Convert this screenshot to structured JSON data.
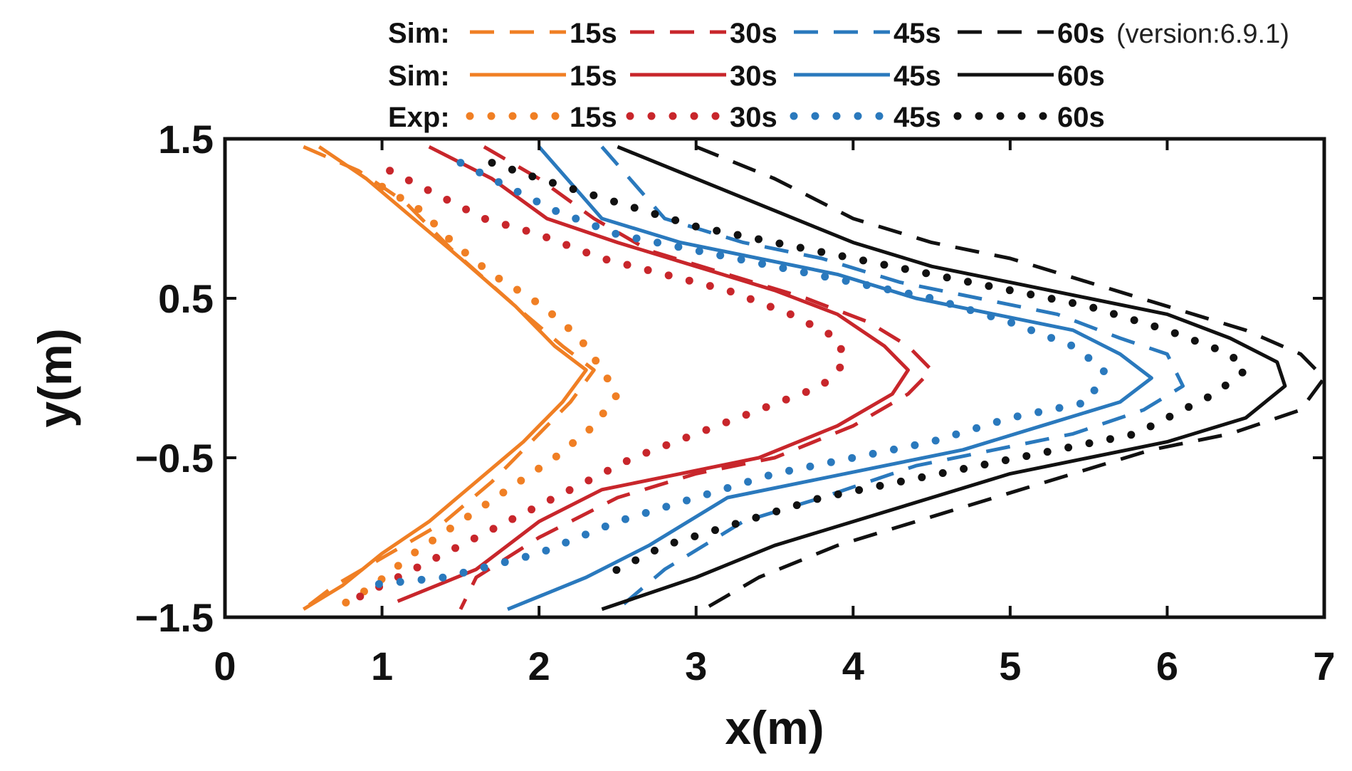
{
  "chart_data": {
    "type": "line",
    "title": "",
    "xlabel": "x(m)",
    "ylabel": "y(m)",
    "xlim": [
      0,
      7
    ],
    "ylim": [
      -1.5,
      1.5
    ],
    "xticks": [
      0,
      1,
      2,
      3,
      4,
      5,
      6,
      7
    ],
    "xtick_labels": [
      "0",
      "1",
      "2",
      "3",
      "4",
      "5",
      "6",
      "7"
    ],
    "yticks": [
      -1.5,
      -0.5,
      0.5,
      1.5
    ],
    "ytick_labels": [
      "−1.5",
      "−0.5",
      "0.5",
      "1.5"
    ],
    "grid": false,
    "legend_position": "top",
    "legend_rows": [
      {
        "label": "Sim:",
        "style": "dashed",
        "note": "(version:6.9.1)"
      },
      {
        "label": "Sim:",
        "style": "solid",
        "note": ""
      },
      {
        "label": "Exp:",
        "style": "dotted",
        "note": ""
      }
    ],
    "times": [
      "15s",
      "30s",
      "45s",
      "60s"
    ],
    "colors": {
      "15s": "#f07f24",
      "30s": "#c8262b",
      "45s": "#2a79bd",
      "60s": "#111111"
    },
    "series": [
      {
        "name": "Sim 15s (version:6.9.1)",
        "time": "15s",
        "style": "dashed",
        "x": [
          0.5,
          0.85,
          1.15,
          1.45,
          1.85,
          2.15,
          2.35,
          2.2,
          1.95,
          1.7,
          1.4,
          1.05,
          0.7,
          0.5
        ],
        "y": [
          1.45,
          1.3,
          1.1,
          0.8,
          0.45,
          0.2,
          0.05,
          -0.15,
          -0.4,
          -0.65,
          -0.9,
          -1.1,
          -1.3,
          -1.45
        ]
      },
      {
        "name": "Sim 15s",
        "time": "15s",
        "style": "solid",
        "x": [
          0.6,
          0.9,
          1.2,
          1.5,
          1.85,
          2.1,
          2.3,
          2.15,
          1.9,
          1.6,
          1.3,
          1.0,
          0.75,
          0.5
        ],
        "y": [
          1.45,
          1.25,
          1.0,
          0.75,
          0.45,
          0.2,
          0.05,
          -0.15,
          -0.4,
          -0.65,
          -0.9,
          -1.1,
          -1.3,
          -1.45
        ]
      },
      {
        "name": "Exp 15s",
        "time": "15s",
        "style": "dotted",
        "x": [
          1.0,
          1.25,
          1.45,
          1.7,
          1.95,
          2.15,
          2.3,
          2.4,
          2.5,
          2.35,
          2.1,
          1.8,
          1.5,
          1.2,
          0.95,
          0.7
        ],
        "y": [
          1.2,
          1.05,
          0.85,
          0.65,
          0.5,
          0.35,
          0.2,
          0.05,
          -0.1,
          -0.3,
          -0.5,
          -0.7,
          -0.9,
          -1.1,
          -1.3,
          -1.45
        ]
      },
      {
        "name": "Sim 30s (version:6.9.1)",
        "time": "30s",
        "style": "dashed",
        "x": [
          1.65,
          2.0,
          2.35,
          2.7,
          3.2,
          3.7,
          4.1,
          4.35,
          4.5,
          4.35,
          4.0,
          3.5,
          3.0,
          2.5,
          2.0,
          1.6,
          1.5
        ],
        "y": [
          1.45,
          1.25,
          1.0,
          0.8,
          0.65,
          0.5,
          0.35,
          0.2,
          0.05,
          -0.1,
          -0.3,
          -0.5,
          -0.6,
          -0.75,
          -1.0,
          -1.25,
          -1.45
        ]
      },
      {
        "name": "Sim 30s",
        "time": "30s",
        "style": "solid",
        "x": [
          1.3,
          1.7,
          2.05,
          2.5,
          3.0,
          3.5,
          3.9,
          4.2,
          4.35,
          4.25,
          3.9,
          3.4,
          2.9,
          2.4,
          2.0,
          1.6,
          1.1
        ],
        "y": [
          1.45,
          1.25,
          1.0,
          0.85,
          0.7,
          0.55,
          0.4,
          0.2,
          0.05,
          -0.1,
          -0.3,
          -0.5,
          -0.6,
          -0.7,
          -0.9,
          -1.2,
          -1.4
        ]
      },
      {
        "name": "Exp 30s",
        "time": "30s",
        "style": "dotted",
        "x": [
          1.05,
          1.35,
          1.65,
          2.0,
          2.4,
          2.8,
          3.2,
          3.6,
          3.9,
          3.95,
          3.8,
          3.4,
          3.0,
          2.6,
          2.2,
          1.8,
          1.4,
          1.1,
          0.8
        ],
        "y": [
          1.3,
          1.15,
          1.0,
          0.9,
          0.75,
          0.65,
          0.55,
          0.4,
          0.25,
          0.1,
          -0.05,
          -0.2,
          -0.35,
          -0.5,
          -0.7,
          -0.9,
          -1.1,
          -1.25,
          -1.4
        ]
      },
      {
        "name": "Sim 45s (version:6.9.1)",
        "time": "45s",
        "style": "dashed",
        "x": [
          2.4,
          2.8,
          3.3,
          3.8,
          4.3,
          4.8,
          5.3,
          5.7,
          6.0,
          6.1,
          5.85,
          5.4,
          4.9,
          4.4,
          3.8,
          3.3,
          2.8,
          2.5
        ],
        "y": [
          1.45,
          1.0,
          0.85,
          0.75,
          0.6,
          0.5,
          0.4,
          0.25,
          0.15,
          -0.05,
          -0.2,
          -0.35,
          -0.45,
          -0.55,
          -0.75,
          -0.9,
          -1.2,
          -1.45
        ]
      },
      {
        "name": "Sim 45s",
        "time": "45s",
        "style": "solid",
        "x": [
          2.0,
          2.4,
          2.9,
          3.4,
          3.9,
          4.4,
          4.9,
          5.4,
          5.7,
          5.9,
          5.7,
          5.2,
          4.7,
          4.2,
          3.7,
          3.2,
          2.7,
          2.3,
          1.8
        ],
        "y": [
          1.45,
          1.0,
          0.85,
          0.75,
          0.65,
          0.5,
          0.4,
          0.3,
          0.15,
          0.0,
          -0.15,
          -0.3,
          -0.45,
          -0.55,
          -0.65,
          -0.75,
          -1.05,
          -1.25,
          -1.45
        ]
      },
      {
        "name": "Exp 45s",
        "time": "45s",
        "style": "dotted",
        "x": [
          1.5,
          1.8,
          2.1,
          2.5,
          3.0,
          3.5,
          4.0,
          4.5,
          5.0,
          5.4,
          5.6,
          5.5,
          5.0,
          4.5,
          4.0,
          3.5,
          3.0,
          2.5,
          2.0,
          1.4,
          0.9
        ],
        "y": [
          1.35,
          1.2,
          1.05,
          0.9,
          0.8,
          0.7,
          0.6,
          0.5,
          0.35,
          0.2,
          0.05,
          -0.15,
          -0.25,
          -0.4,
          -0.5,
          -0.6,
          -0.75,
          -0.9,
          -1.1,
          -1.25,
          -1.3
        ]
      },
      {
        "name": "Sim 60s (version:6.9.1)",
        "time": "60s",
        "style": "dashed",
        "x": [
          3.0,
          3.5,
          4.0,
          4.5,
          5.0,
          5.5,
          6.0,
          6.5,
          6.85,
          7.0,
          6.85,
          6.4,
          5.9,
          5.4,
          4.9,
          4.4,
          3.9,
          3.4,
          3.05
        ],
        "y": [
          1.45,
          1.25,
          1.0,
          0.85,
          0.75,
          0.6,
          0.45,
          0.3,
          0.15,
          0.0,
          -0.2,
          -0.35,
          -0.45,
          -0.6,
          -0.75,
          -0.9,
          -1.05,
          -1.25,
          -1.45
        ]
      },
      {
        "name": "Sim 60s",
        "time": "60s",
        "style": "solid",
        "x": [
          2.5,
          3.0,
          3.5,
          4.0,
          4.5,
          5.0,
          5.5,
          6.0,
          6.4,
          6.7,
          6.75,
          6.5,
          6.0,
          5.5,
          5.0,
          4.5,
          4.0,
          3.5,
          3.0,
          2.4
        ],
        "y": [
          1.45,
          1.25,
          1.05,
          0.85,
          0.7,
          0.6,
          0.5,
          0.4,
          0.25,
          0.1,
          -0.05,
          -0.25,
          -0.4,
          -0.5,
          -0.6,
          -0.75,
          -0.9,
          -1.05,
          -1.25,
          -1.45
        ]
      },
      {
        "name": "Exp 60s",
        "time": "60s",
        "style": "dotted",
        "x": [
          1.7,
          2.0,
          2.5,
          3.0,
          3.5,
          4.0,
          4.5,
          5.0,
          5.5,
          6.0,
          6.4,
          6.5,
          6.3,
          5.8,
          5.3,
          4.8,
          4.3,
          3.8,
          3.3,
          2.8,
          2.4
        ],
        "y": [
          1.35,
          1.25,
          1.1,
          0.95,
          0.85,
          0.75,
          0.65,
          0.55,
          0.45,
          0.3,
          0.15,
          0.05,
          -0.1,
          -0.35,
          -0.45,
          -0.55,
          -0.65,
          -0.75,
          -0.9,
          -1.05,
          -1.25
        ]
      }
    ]
  }
}
